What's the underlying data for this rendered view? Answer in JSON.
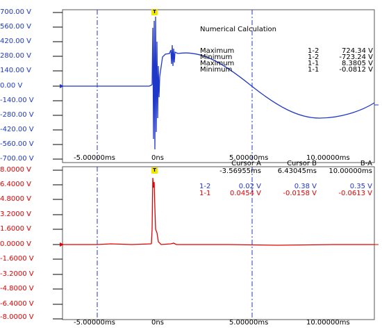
{
  "top_panel": {
    "y_ticks": [
      "700.00 V",
      "560.00 V",
      "420.00 V",
      "280.00 V",
      "140.00 V",
      "0.00 V",
      "-140.00 V",
      "-280.00 V",
      "-420.00 V",
      "-560.00 V",
      "-700.00 V"
    ],
    "x_ticks": [
      "-5.00000ms",
      "0ns",
      "5.00000ms",
      "10.00000ms"
    ],
    "trigger_label": "T",
    "calc": {
      "title": "Numerical Calculation",
      "rows": [
        {
          "name": "Maximum",
          "channel": "1-2",
          "value": "724.34 V"
        },
        {
          "name": "Minimum",
          "channel": "1-2",
          "value": "-723.24 V"
        },
        {
          "name": "Maximum",
          "channel": "1-1",
          "value": "8.3805 V"
        },
        {
          "name": "Minimum",
          "channel": "1-1",
          "value": "-0.0812 V"
        }
      ]
    }
  },
  "bottom_panel": {
    "y_ticks": [
      "8.0000 V",
      "6.4000 V",
      "4.8000 V",
      "3.2000 V",
      "1.6000 V",
      "0.0000 V",
      "-1.6000 V",
      "-3.2000 V",
      "-4.8000 V",
      "-6.4000 V",
      "-8.0000 V"
    ],
    "x_ticks": [
      "-5.00000ms",
      "0ns",
      "5.00000ms",
      "10.00000ms"
    ],
    "trigger_label": "T"
  },
  "cursor_table": {
    "headers": [
      "Cursor A",
      "Cursor B",
      "B-A"
    ],
    "times": [
      "-3.56955ms",
      "6.43045ms",
      "10.00000ms"
    ],
    "rows": [
      {
        "channel": "1-2",
        "a": "0.02 V",
        "b": "0.38 V",
        "ba": "0.35 V",
        "color": "#1f38c8"
      },
      {
        "channel": "1-1",
        "a": "0.0454 V",
        "b": "-0.0158 V",
        "ba": "-0.0613 V",
        "color": "#e00000"
      }
    ]
  },
  "colors": {
    "ch_1_2": "#1f38c8",
    "ch_1_1": "#e00000",
    "cursor": "#1f38c8",
    "grid": "#000000",
    "trigger": "#f5e800"
  }
}
